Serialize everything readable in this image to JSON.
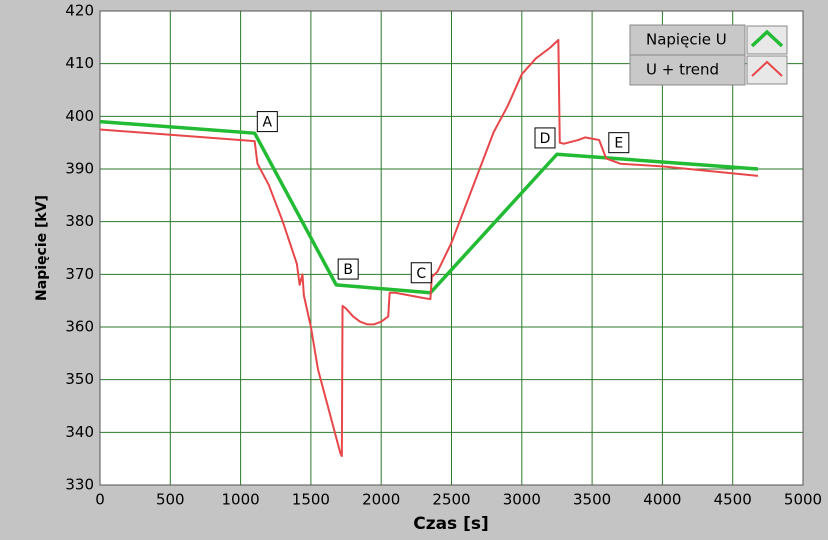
{
  "chart_data": {
    "type": "line",
    "x_label": "Czas [s]",
    "y_label": "Napięcie [kV]",
    "xlim": [
      0,
      5000
    ],
    "xticks": [
      0,
      500,
      1000,
      1500,
      2000,
      2500,
      3000,
      3500,
      4000,
      4500,
      5000
    ],
    "ylim": [
      330,
      420
    ],
    "yticks": [
      330,
      340,
      350,
      360,
      370,
      380,
      390,
      400,
      410,
      420
    ],
    "grid": true,
    "legend": "top-right",
    "series": [
      {
        "name": "Napięcie U",
        "color": "#22bb33",
        "x": [
          0,
          1100,
          1680,
          2350,
          3250,
          4680
        ],
        "values": [
          399,
          396.8,
          368,
          366.5,
          392.8,
          390
        ]
      },
      {
        "name": "U + trend",
        "color": "#e8474a",
        "x": [
          0,
          1100,
          1120,
          1200,
          1300,
          1400,
          1420,
          1440,
          1450,
          1500,
          1550,
          1600,
          1650,
          1690,
          1710,
          1720,
          1725,
          1750,
          1800,
          1850,
          1900,
          1950,
          2000,
          2050,
          2060,
          2100,
          2200,
          2300,
          2350,
          2360,
          2400,
          2500,
          2600,
          2700,
          2800,
          2900,
          3000,
          3100,
          3200,
          3260,
          3270,
          3300,
          3400,
          3450,
          3550,
          3600,
          3700,
          4000,
          4680
        ],
        "values": [
          397.5,
          395.3,
          391,
          387,
          380,
          372,
          368,
          370,
          366,
          360,
          352,
          347,
          342,
          338,
          336,
          335.5,
          364,
          363.5,
          362,
          361,
          360.5,
          360.5,
          361,
          362,
          366.5,
          366.5,
          366,
          365.5,
          365.3,
          369.5,
          370.5,
          376,
          383,
          390,
          397,
          402,
          408,
          411,
          413,
          414.5,
          395,
          394.8,
          395.5,
          396,
          395.5,
          392,
          391,
          390.5,
          388.7
        ]
      }
    ],
    "annotations": [
      {
        "text": "A",
        "x": 1190,
        "y": 399
      },
      {
        "text": "B",
        "x": 1765,
        "y": 371
      },
      {
        "text": "C",
        "x": 2285,
        "y": 370.3
      },
      {
        "text": "D",
        "x": 3165,
        "y": 395.9
      },
      {
        "text": "E",
        "x": 3690,
        "y": 395
      }
    ]
  }
}
